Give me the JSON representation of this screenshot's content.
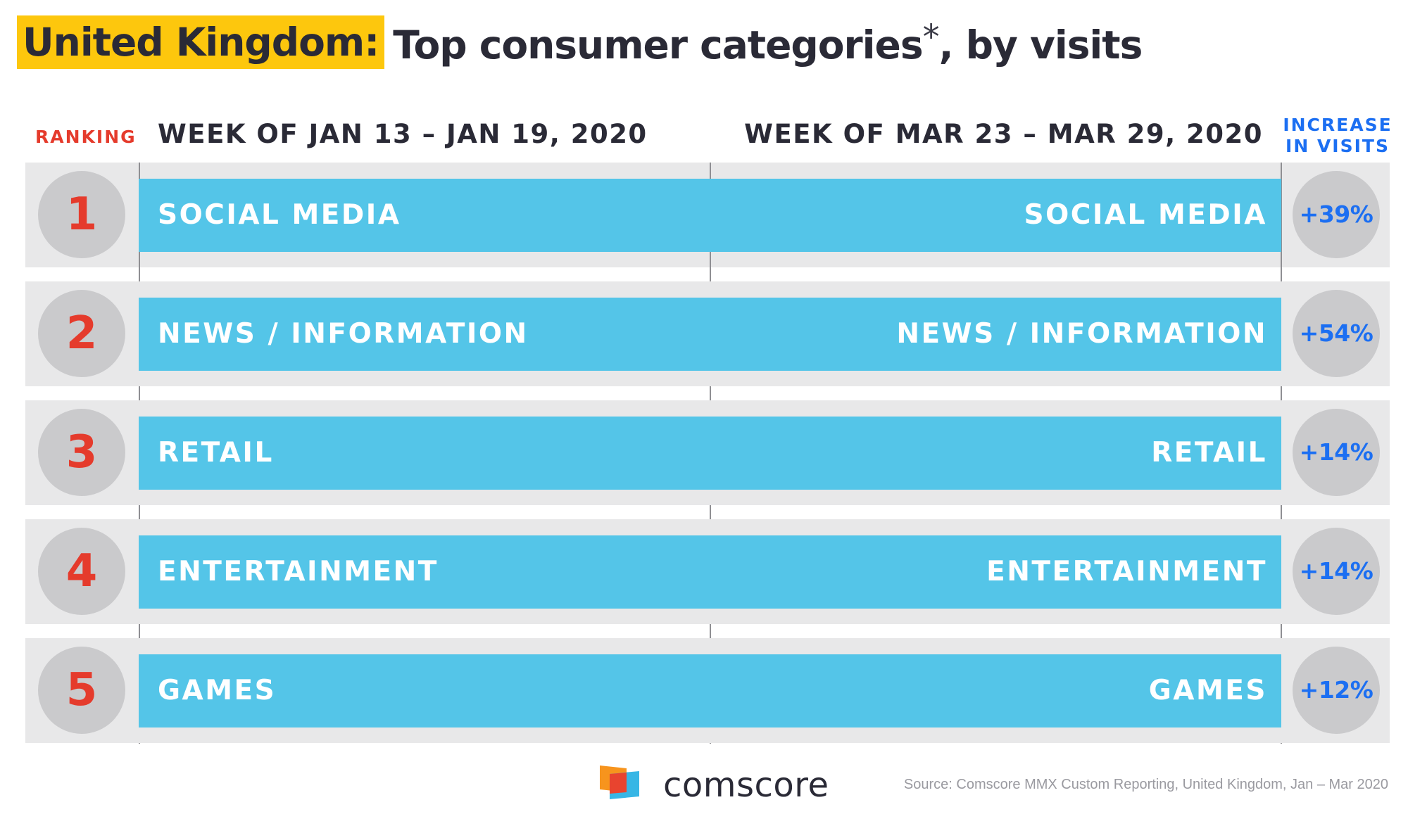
{
  "title": {
    "highlight": "United Kingdom:",
    "rest": "Top consumer categories",
    "asterisk": "*",
    "suffix": ", by visits"
  },
  "headers": {
    "ranking": "RANKING",
    "week_before": "WEEK OF JAN 13 – JAN 19, 2020",
    "week_after": "WEEK OF MAR 23 – MAR 29, 2020",
    "increase_line1": "INCREASE",
    "increase_line2": "IN VISITS"
  },
  "colors": {
    "highlight": "#fdc70d",
    "bar": "#54c5e8",
    "rank_text": "#e53b2c",
    "increase_text": "#1c6ff2",
    "row_background": "#e8e8e9",
    "circle": "#cacacc"
  },
  "chart_data": {
    "type": "table",
    "columns": [
      "RANKING",
      "WEEK OF JAN 13 – JAN 19, 2020",
      "WEEK OF MAR 23 – MAR 29, 2020",
      "INCREASE IN VISITS"
    ],
    "rows": [
      {
        "rank": "1",
        "before": "SOCIAL MEDIA",
        "after": "SOCIAL MEDIA",
        "increase": "+39%"
      },
      {
        "rank": "2",
        "before": "NEWS / INFORMATION",
        "after": "NEWS / INFORMATION",
        "increase": "+54%"
      },
      {
        "rank": "3",
        "before": "RETAIL",
        "after": "RETAIL",
        "increase": "+14%"
      },
      {
        "rank": "4",
        "before": "ENTERTAINMENT",
        "after": "ENTERTAINMENT",
        "increase": "+14%"
      },
      {
        "rank": "5",
        "before": "GAMES",
        "after": "GAMES",
        "increase": "+12%"
      }
    ]
  },
  "footer": {
    "logo_text": "comscore",
    "source": "Source: Comscore MMX Custom Reporting, United Kingdom, Jan – Mar 2020"
  }
}
